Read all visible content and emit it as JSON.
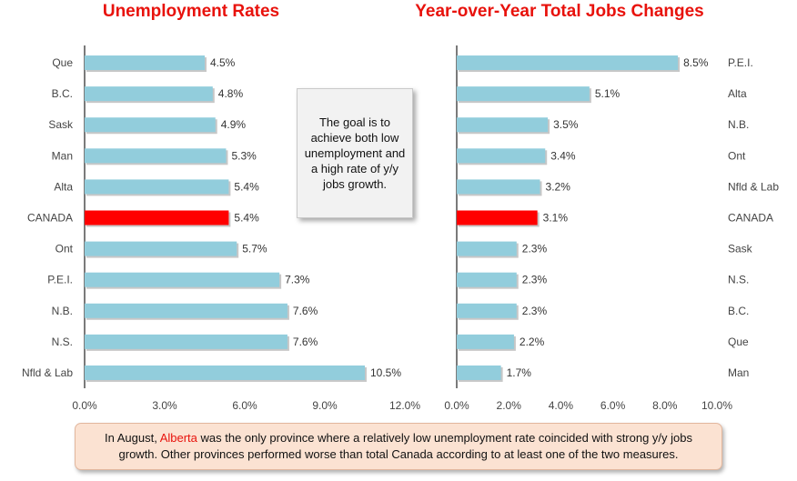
{
  "colors": {
    "bar": "#92cddc",
    "bar_highlight": "#ff0000",
    "title": "#e8120c",
    "note_bg": "#fbe2d2"
  },
  "goal_text": "The goal is to achieve both low unemployment and a high rate of y/y jobs growth.",
  "note": {
    "prefix": "In August, ",
    "highlight": "Alberta",
    "suffix": " was the only province where a relatively low unemployment rate coincided with strong y/y jobs growth. Other provinces performed worse than total Canada according to at least one of the two measures."
  },
  "chart_data": [
    {
      "type": "bar",
      "orientation": "horizontal",
      "title": "Unemployment Rates",
      "categories": [
        "Que",
        "B.C.",
        "Sask",
        "Man",
        "Alta",
        "CANADA",
        "Ont",
        "P.E.I.",
        "N.B.",
        "N.S.",
        "Nfld & Lab"
      ],
      "values": [
        4.5,
        4.8,
        4.9,
        5.3,
        5.4,
        5.4,
        5.7,
        7.3,
        7.6,
        7.6,
        10.5
      ],
      "data_labels": [
        "4.5%",
        "4.8%",
        "4.9%",
        "5.3%",
        "5.4%",
        "5.4%",
        "5.7%",
        "7.3%",
        "7.6%",
        "7.6%",
        "10.5%"
      ],
      "highlight": "CANADA",
      "xlim": [
        0,
        12
      ],
      "xticks": [
        "0.0%",
        "3.0%",
        "6.0%",
        "9.0%",
        "12.0%"
      ],
      "category_label_side": "left",
      "grid": false
    },
    {
      "type": "bar",
      "orientation": "horizontal",
      "title": "Year-over-Year Total Jobs Changes",
      "categories": [
        "P.E.I.",
        "Alta",
        "N.B.",
        "Ont",
        "Nfld & Lab",
        "CANADA",
        "Sask",
        "N.S.",
        "B.C.",
        "Que",
        "Man"
      ],
      "values": [
        8.5,
        5.1,
        3.5,
        3.4,
        3.2,
        3.1,
        2.3,
        2.3,
        2.3,
        2.2,
        1.7
      ],
      "data_labels": [
        "8.5%",
        "5.1%",
        "3.5%",
        "3.4%",
        "3.2%",
        "3.1%",
        "2.3%",
        "2.3%",
        "2.3%",
        "2.2%",
        "1.7%"
      ],
      "highlight": "CANADA",
      "xlim": [
        0,
        10
      ],
      "xticks": [
        "0.0%",
        "2.0%",
        "4.0%",
        "6.0%",
        "8.0%",
        "10.0%"
      ],
      "category_label_side": "right",
      "grid": false
    }
  ]
}
